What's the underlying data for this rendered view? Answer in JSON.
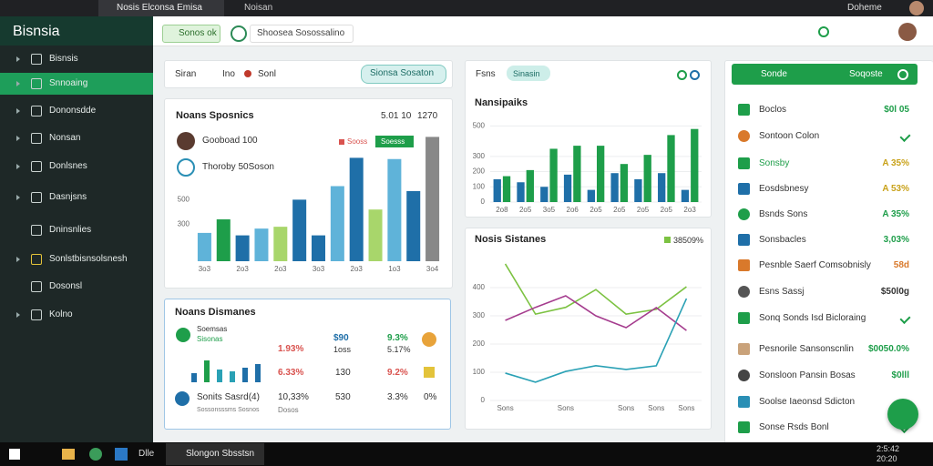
{
  "browser": {
    "tabs": [
      "Nosis Elconsa Emisa",
      "Noisan"
    ],
    "user": "Doheme"
  },
  "sidebar": {
    "brand": "Bisnsia",
    "items": [
      "Bisnsis",
      "Snnoaing",
      "Dononsdde",
      "Nonsan",
      "Donlsnes",
      "Dasnjsns",
      "Dninsnlies",
      "Sonlstbisnsolsnesh",
      "Dosonsl",
      "Kolno"
    ]
  },
  "topbar": {
    "chip": "Sonos ok",
    "dropdown": "Shoosea Sosossalino"
  },
  "panel1": {
    "tabs": [
      "Siran",
      "Ino",
      "Sonl"
    ],
    "button": "Sionsa Sosaton",
    "stats": [
      "5.01 10",
      "1270"
    ],
    "rows": [
      "Gooboad 100",
      "Thoroby 50Soson"
    ],
    "legend": [
      "Sooss",
      "Soesss"
    ]
  },
  "panel2": {
    "title": "Noans Dismanes",
    "row1": {
      "label": "Soemsas",
      "sub": "Sisonas",
      "cells": [
        "$90",
        "1oss",
        "9.3%",
        "5.17%"
      ]
    },
    "row2": {
      "cells": [
        "1.93%",
        "6.33%",
        "130",
        "9.2%"
      ]
    },
    "row3": {
      "label": "Sonits Sasrd(4)",
      "sub": "Sossonsssms Sosnos",
      "cells": [
        "10,33%",
        "Dosos",
        "530",
        "3.3%",
        "0%"
      ]
    }
  },
  "panel3": {
    "label": "Fsns",
    "chip": "Sinasin"
  },
  "right": {
    "header": [
      "Sonde",
      "Soqoste"
    ],
    "items": [
      {
        "name": "Boclos",
        "value": "$0l 05",
        "icon_color": "#1e9e4a",
        "value_color": "#1e9e4a"
      },
      {
        "name": "Sontoon Colon",
        "icon_color": "#d9792b"
      },
      {
        "name": "Sonsby",
        "value": "A 35%",
        "icon_color": "#1e9e4a",
        "value_color": "#c9a21a"
      },
      {
        "name": "Eosdsbnesy",
        "value": "A 53%",
        "icon_color": "#1f6fa8",
        "value_color": "#c9a21a"
      },
      {
        "name": "Bsnds Sons",
        "value": "A 35%",
        "icon_color": "#1e9e4a",
        "value_color": "#1e9e4a"
      },
      {
        "name": "Sonsbacles",
        "value": "3,03%",
        "icon_color": "#1f6fa8",
        "value_color": "#1e9e4a"
      },
      {
        "name": "Pesnble Saerf Comsobnisly",
        "value": "58d",
        "icon_color": "#d9792b",
        "value_color": "#d9792b"
      },
      {
        "name": "Esns Sassj",
        "value": "$50l0g",
        "icon_color": "#555555",
        "value_color": "#333333"
      },
      {
        "name": "Sonq Sonds Isd Bicloraing",
        "icon_color": "#1e9e4a"
      },
      {
        "name": "Pesnorile Sansonscnlin",
        "value": "$0050.0%",
        "icon_color": "#c9a27a",
        "value_color": "#1e9e4a"
      },
      {
        "name": "Sonsloon Pansin Bosas",
        "value": "$0lll",
        "icon_color": "#444444",
        "value_color": "#1e9e4a"
      },
      {
        "name": "Soolse Iaeonsd Sdicton",
        "icon_color": "#2a8fb5"
      },
      {
        "name": "Sonse Rsds Bonl",
        "icon_color": "#1e9e4a"
      }
    ]
  },
  "taskbar": {
    "app": "Dlle",
    "active": "Slongon Sbsstsn",
    "time": "2:5:42",
    "date": "20:20"
  },
  "chart_data": [
    {
      "type": "bar",
      "title": "Noans Sposnics",
      "categories": [
        "3o3",
        null,
        "2o3",
        null,
        "2o3",
        null,
        "3o3",
        null,
        "2o3",
        null,
        "1o3",
        null,
        "3o4"
      ],
      "values": [
        230,
        340,
        210,
        265,
        280,
        500,
        210,
        610,
        840,
        420,
        830,
        570,
        1010
      ],
      "colors": [
        "#5fb3d9",
        "#1e9e4a",
        "#1f6fa8",
        "#5fb3d9",
        "#a8d66b",
        "#1f6fa8",
        "#1f6fa8",
        "#5fb3d9",
        "#1f6fa8",
        "#a8d66b",
        "#5fb3d9",
        "#1f6fa8",
        "#888888"
      ],
      "ylim": [
        0,
        1050
      ],
      "yticks": [
        300,
        500
      ],
      "grid": false
    },
    {
      "type": "bar",
      "title": "Nansipaiks",
      "categories": [
        "2o8",
        "2o5",
        "3o5",
        "2o6",
        "2o5",
        "2o5",
        "2o5",
        "2o5",
        "2o3"
      ],
      "series": [
        {
          "color": "#1f6fa8",
          "values": [
            150,
            130,
            100,
            180,
            80,
            190,
            150,
            190,
            80
          ]
        },
        {
          "color": "#1e9e4a",
          "values": [
            170,
            210,
            350,
            370,
            370,
            250,
            310,
            440,
            480
          ]
        }
      ],
      "ylim": [
        0,
        550
      ],
      "yticks": [
        0,
        100,
        200,
        300,
        500
      ],
      "grid": true
    },
    {
      "type": "line",
      "title": "Nosis Sistanes",
      "legend_label": "38509%",
      "categories": [
        "Sons",
        null,
        "Sons",
        null,
        "Sons",
        "Sons",
        "Sons"
      ],
      "series": [
        {
          "color": "#7cc242",
          "values": [
            484,
            306,
            330,
            393,
            306,
            323,
            403
          ]
        },
        {
          "color": "#a53c8e",
          "values": [
            284,
            330,
            371,
            300,
            258,
            329,
            248
          ]
        },
        {
          "color": "#2aa1b5",
          "values": [
            97,
            65,
            103,
            123,
            110,
            123,
            361
          ]
        }
      ],
      "ylim": [
        0,
        500
      ],
      "yticks": [
        0,
        100,
        200,
        300,
        400
      ],
      "grid": true
    }
  ]
}
